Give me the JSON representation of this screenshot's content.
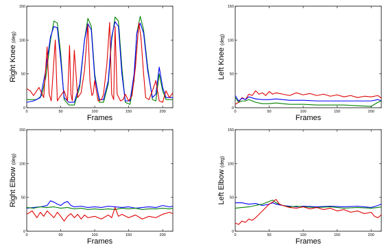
{
  "chart_data": [
    {
      "type": "line",
      "ylabel": "Right Knee",
      "ylabel_unit": "(deg)",
      "xlabel": "Frames",
      "xlim": [
        0,
        215
      ],
      "ylim": [
        0,
        150
      ],
      "xticks": [
        0,
        50,
        100,
        150,
        200
      ],
      "yticks": [
        0,
        50,
        100,
        150
      ],
      "series": [
        {
          "color": "#008000",
          "x": [
            0,
            15,
            22,
            28,
            35,
            40,
            45,
            50,
            55,
            62,
            70,
            78,
            85,
            90,
            95,
            100,
            107,
            113,
            120,
            125,
            130,
            135,
            140,
            145,
            152,
            158,
            162,
            167,
            172,
            178,
            185,
            190,
            195,
            200,
            205,
            215
          ],
          "y": [
            12,
            12,
            18,
            45,
            100,
            128,
            125,
            80,
            12,
            4,
            4,
            30,
            100,
            132,
            120,
            50,
            8,
            8,
            35,
            100,
            134,
            128,
            60,
            8,
            5,
            40,
            110,
            135,
            115,
            60,
            12,
            10,
            50,
            25,
            12,
            12
          ]
        },
        {
          "color": "#0000ff",
          "x": [
            0,
            10,
            20,
            27,
            35,
            40,
            45,
            50,
            55,
            62,
            70,
            78,
            85,
            90,
            95,
            100,
            107,
            113,
            120,
            125,
            130,
            135,
            140,
            145,
            152,
            158,
            162,
            167,
            172,
            178,
            185,
            190,
            195,
            200,
            205,
            215
          ],
          "y": [
            8,
            10,
            15,
            50,
            105,
            120,
            118,
            70,
            15,
            8,
            8,
            35,
            100,
            124,
            115,
            45,
            12,
            12,
            40,
            105,
            127,
            120,
            50,
            10,
            10,
            50,
            110,
            125,
            110,
            55,
            15,
            20,
            60,
            30,
            15,
            15
          ]
        },
        {
          "color": "#e00000",
          "x": [
            0,
            5,
            10,
            18,
            25,
            30,
            33,
            36,
            38,
            42,
            45,
            48,
            55,
            60,
            63,
            65,
            67,
            70,
            75,
            80,
            85,
            90,
            93,
            96,
            98,
            100,
            105,
            110,
            113,
            118,
            122,
            125,
            128,
            130,
            133,
            138,
            142,
            145,
            150,
            155,
            160,
            165,
            168,
            172,
            175,
            180,
            185,
            190,
            195,
            200,
            205,
            210,
            215
          ],
          "y": [
            28,
            25,
            18,
            30,
            15,
            90,
            20,
            10,
            40,
            100,
            10,
            15,
            25,
            10,
            92,
            20,
            10,
            85,
            15,
            22,
            55,
            122,
            40,
            18,
            22,
            40,
            10,
            12,
            20,
            65,
            126,
            20,
            12,
            120,
            20,
            10,
            12,
            20,
            10,
            18,
            60,
            125,
            105,
            50,
            15,
            12,
            25,
            40,
            10,
            8,
            25,
            15,
            22
          ]
        }
      ]
    },
    {
      "type": "line",
      "ylabel": "Left Knee",
      "ylabel_unit": "(deg)",
      "xlabel": "Frames",
      "xlim": [
        0,
        215
      ],
      "ylim": [
        0,
        150
      ],
      "xticks": [
        0,
        50,
        100,
        150,
        200
      ],
      "yticks": [
        0,
        50,
        100,
        150
      ],
      "series": [
        {
          "color": "#e00000",
          "x": [
            0,
            5,
            10,
            15,
            20,
            25,
            30,
            35,
            40,
            45,
            50,
            55,
            60,
            70,
            80,
            90,
            100,
            110,
            120,
            130,
            140,
            150,
            160,
            170,
            180,
            190,
            200,
            210,
            215
          ],
          "y": [
            5,
            8,
            15,
            12,
            20,
            18,
            25,
            20,
            22,
            18,
            24,
            20,
            22,
            20,
            18,
            22,
            19,
            21,
            18,
            20,
            17,
            19,
            16,
            18,
            15,
            17,
            16,
            18,
            14
          ]
        },
        {
          "color": "#0000ff",
          "x": [
            0,
            5,
            10,
            15,
            20,
            30,
            40,
            50,
            60,
            70,
            80,
            100,
            120,
            140,
            160,
            180,
            200,
            210,
            215
          ],
          "y": [
            18,
            10,
            14,
            12,
            16,
            13,
            12,
            12,
            13,
            12,
            11,
            11,
            10,
            10,
            10,
            10,
            10,
            12,
            10
          ]
        },
        {
          "color": "#008000",
          "x": [
            0,
            5,
            10,
            15,
            20,
            30,
            40,
            50,
            60,
            70,
            80,
            100,
            120,
            140,
            160,
            180,
            200,
            210,
            215
          ],
          "y": [
            15,
            8,
            10,
            10,
            12,
            8,
            6,
            6,
            7,
            6,
            5,
            5,
            4,
            4,
            4,
            3,
            2,
            8,
            10
          ]
        }
      ]
    },
    {
      "type": "line",
      "ylabel": "Right Elbow",
      "ylabel_unit": "(deg)",
      "xlabel": "Frames",
      "xlim": [
        0,
        215
      ],
      "ylim": [
        0,
        150
      ],
      "xticks": [
        0,
        50,
        100,
        150,
        200
      ],
      "yticks": [
        0,
        50,
        100,
        150
      ],
      "series": [
        {
          "color": "#0000ff",
          "x": [
            0,
            10,
            20,
            30,
            35,
            40,
            45,
            50,
            55,
            60,
            65,
            70,
            80,
            90,
            100,
            110,
            120,
            130,
            140,
            150,
            160,
            170,
            180,
            190,
            200,
            210,
            215
          ],
          "y": [
            34,
            35,
            36,
            38,
            45,
            43,
            40,
            38,
            42,
            44,
            38,
            36,
            37,
            35,
            36,
            35,
            37,
            36,
            35,
            36,
            34,
            35,
            36,
            35,
            38,
            36,
            37
          ]
        },
        {
          "color": "#008000",
          "x": [
            0,
            10,
            20,
            30,
            40,
            50,
            60,
            70,
            80,
            90,
            100,
            110,
            120,
            130,
            140,
            150,
            160,
            170,
            180,
            190,
            200,
            210,
            215
          ],
          "y": [
            35,
            34,
            36,
            35,
            36,
            34,
            35,
            33,
            34,
            32,
            33,
            32,
            33,
            32,
            34,
            33,
            34,
            32,
            33,
            33,
            34,
            33,
            34
          ]
        },
        {
          "color": "#e00000",
          "x": [
            0,
            8,
            15,
            20,
            25,
            30,
            35,
            40,
            45,
            50,
            55,
            60,
            65,
            70,
            75,
            80,
            85,
            90,
            100,
            110,
            120,
            125,
            130,
            135,
            140,
            150,
            160,
            170,
            180,
            190,
            200,
            210,
            215
          ],
          "y": [
            25,
            30,
            20,
            28,
            22,
            30,
            25,
            20,
            28,
            22,
            15,
            22,
            26,
            20,
            25,
            18,
            24,
            20,
            22,
            18,
            24,
            20,
            35,
            22,
            25,
            20,
            24,
            18,
            22,
            20,
            25,
            28,
            26
          ]
        }
      ]
    },
    {
      "type": "line",
      "ylabel": "Left Elbow",
      "ylabel_unit": "(deg)",
      "xlabel": "Frames",
      "xlim": [
        0,
        215
      ],
      "ylim": [
        0,
        150
      ],
      "xticks": [
        0,
        50,
        100,
        150,
        200
      ],
      "yticks": [
        0,
        50,
        100,
        150
      ],
      "series": [
        {
          "color": "#0000ff",
          "x": [
            0,
            10,
            20,
            30,
            40,
            50,
            55,
            60,
            70,
            80,
            90,
            100,
            120,
            140,
            160,
            180,
            200,
            210,
            215
          ],
          "y": [
            42,
            42,
            40,
            41,
            38,
            40,
            42,
            40,
            38,
            37,
            36,
            37,
            36,
            37,
            36,
            37,
            35,
            38,
            40
          ]
        },
        {
          "color": "#008000",
          "x": [
            0,
            10,
            20,
            30,
            40,
            50,
            55,
            60,
            70,
            80,
            90,
            100,
            120,
            140,
            160,
            180,
            200,
            210,
            215
          ],
          "y": [
            34,
            35,
            36,
            38,
            40,
            44,
            46,
            42,
            38,
            36,
            37,
            36,
            35,
            36,
            34,
            35,
            34,
            35,
            36
          ]
        },
        {
          "color": "#e00000",
          "x": [
            0,
            5,
            10,
            15,
            20,
            25,
            30,
            35,
            40,
            45,
            50,
            55,
            60,
            65,
            70,
            80,
            90,
            100,
            110,
            120,
            130,
            140,
            150,
            160,
            170,
            180,
            190,
            200,
            205,
            210,
            215
          ],
          "y": [
            12,
            10,
            15,
            13,
            18,
            16,
            20,
            25,
            30,
            35,
            40,
            43,
            47,
            40,
            38,
            35,
            34,
            36,
            33,
            35,
            32,
            34,
            30,
            32,
            28,
            30,
            26,
            28,
            22,
            20,
            24
          ]
        }
      ]
    }
  ]
}
